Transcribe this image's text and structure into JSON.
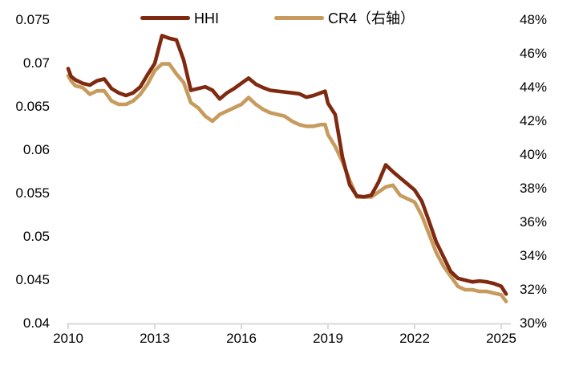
{
  "chart_data": {
    "type": "line",
    "title": "",
    "grid": false,
    "axis_line_color": "#D9D9D9",
    "legend": {
      "position": "top",
      "entries": [
        "HHI",
        "CR4（右轴）"
      ]
    },
    "x_axis": {
      "range": [
        2010,
        2025.3
      ],
      "ticks": [
        {
          "label": "2010",
          "value": 2010
        },
        {
          "label": "2013",
          "value": 2013
        },
        {
          "label": "2016",
          "value": 2016
        },
        {
          "label": "2019",
          "value": 2019
        },
        {
          "label": "2022",
          "value": 2022
        },
        {
          "label": "2025",
          "value": 2025
        }
      ]
    },
    "left_axis": {
      "range": [
        0.04,
        0.075
      ],
      "ticks": [
        {
          "label": "0.075",
          "value": 0.075
        },
        {
          "label": "0.07",
          "value": 0.07
        },
        {
          "label": "0.065",
          "value": 0.065
        },
        {
          "label": "0.06",
          "value": 0.06
        },
        {
          "label": "0.055",
          "value": 0.055
        },
        {
          "label": "0.05",
          "value": 0.05
        },
        {
          "label": "0.045",
          "value": 0.045
        },
        {
          "label": "0.04",
          "value": 0.04
        }
      ]
    },
    "right_axis": {
      "range": [
        30,
        48
      ],
      "ticks": [
        {
          "label": "48%",
          "value": 48
        },
        {
          "label": "46%",
          "value": 46
        },
        {
          "label": "44%",
          "value": 44
        },
        {
          "label": "42%",
          "value": 42
        },
        {
          "label": "40%",
          "value": 40
        },
        {
          "label": "38%",
          "value": 38
        },
        {
          "label": "36%",
          "value": 36
        },
        {
          "label": "34%",
          "value": 34
        },
        {
          "label": "32%",
          "value": 32
        },
        {
          "label": "30%",
          "value": 30
        }
      ]
    },
    "x": [
      2010,
      2010.1,
      2010.25,
      2010.5,
      2010.75,
      2011,
      2011.25,
      2011.5,
      2011.75,
      2012,
      2012.25,
      2012.5,
      2012.75,
      2013,
      2013.25,
      2013.5,
      2013.75,
      2014,
      2014.25,
      2014.5,
      2014.75,
      2015,
      2015.25,
      2015.5,
      2015.75,
      2016,
      2016.25,
      2016.5,
      2016.75,
      2017,
      2017.25,
      2017.5,
      2017.75,
      2018,
      2018.25,
      2018.5,
      2018.75,
      2018.9,
      2019,
      2019.25,
      2019.5,
      2019.75,
      2020,
      2020.25,
      2020.5,
      2020.75,
      2021,
      2021.25,
      2021.5,
      2021.75,
      2022,
      2022.25,
      2022.5,
      2022.75,
      2023,
      2023.25,
      2023.5,
      2023.75,
      2024,
      2024.25,
      2024.5,
      2024.75,
      2025,
      2025.17
    ],
    "series": [
      {
        "name": "HHI",
        "axis": "left",
        "color": "#7F2A10",
        "values": [
          0.0694,
          0.0685,
          0.0681,
          0.0677,
          0.0675,
          0.068,
          0.0682,
          0.0671,
          0.0666,
          0.0663,
          0.0666,
          0.0673,
          0.0687,
          0.07,
          0.0732,
          0.0729,
          0.0727,
          0.0704,
          0.0669,
          0.0671,
          0.0673,
          0.0669,
          0.0659,
          0.0666,
          0.0671,
          0.0677,
          0.0683,
          0.0676,
          0.0672,
          0.0669,
          0.0668,
          0.0667,
          0.0666,
          0.0665,
          0.0661,
          0.0663,
          0.0666,
          0.0668,
          0.0654,
          0.0641,
          0.0592,
          0.056,
          0.0547,
          0.0546,
          0.0548,
          0.0563,
          0.0583,
          0.0575,
          0.0568,
          0.0561,
          0.0554,
          0.0541,
          0.0518,
          0.0494,
          0.0477,
          0.046,
          0.0452,
          0.045,
          0.0448,
          0.0449,
          0.0448,
          0.0446,
          0.0443,
          0.0434
        ]
      },
      {
        "name": "CR4（右轴）",
        "axis": "right",
        "color": "#C79B5D",
        "values": [
          44.7,
          44.4,
          44.1,
          44.0,
          43.6,
          43.8,
          43.8,
          43.2,
          43.0,
          43.0,
          43.2,
          43.6,
          44.2,
          45.0,
          45.4,
          45.4,
          44.8,
          44.3,
          43.1,
          42.8,
          42.3,
          42.0,
          42.4,
          42.6,
          42.8,
          43.0,
          43.4,
          43.0,
          42.7,
          42.5,
          42.4,
          42.3,
          42.0,
          41.8,
          41.7,
          41.7,
          41.8,
          41.8,
          41.2,
          40.5,
          39.6,
          38.5,
          37.5,
          37.5,
          37.5,
          37.8,
          38.1,
          38.2,
          37.6,
          37.4,
          37.2,
          36.4,
          35.3,
          34.2,
          33.4,
          32.8,
          32.2,
          32.0,
          32.0,
          31.9,
          31.9,
          31.8,
          31.7,
          31.3
        ]
      }
    ]
  }
}
